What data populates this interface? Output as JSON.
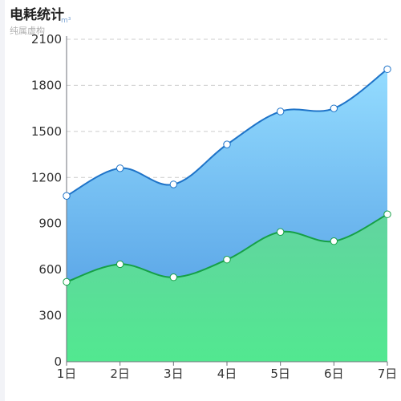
{
  "header": {
    "title": "电耗统计",
    "subtitle": "纯属虚构",
    "unit": "m³"
  },
  "chart_data": {
    "type": "area",
    "categories": [
      "1日",
      "2日",
      "3日",
      "4日",
      "5日",
      "6日",
      "7日"
    ],
    "series": [
      {
        "values": [
          1080,
          1260,
          1155,
          1415,
          1630,
          1650,
          1905
        ],
        "line_color": "#1e73c8",
        "fill_top": "#94dcff",
        "fill_bottom": "#4a96e0"
      },
      {
        "values": [
          520,
          635,
          550,
          665,
          845,
          785,
          960
        ],
        "line_color": "#16a046",
        "fill_top": "#62d4a0",
        "fill_bottom": "#52e890"
      }
    ],
    "yticks": [
      0,
      300,
      600,
      900,
      1200,
      1500,
      1800,
      2100
    ],
    "ylim": [
      0,
      2100
    ],
    "grid": true,
    "grid_color": "#cccccc",
    "axis_color": "#6e7079"
  }
}
